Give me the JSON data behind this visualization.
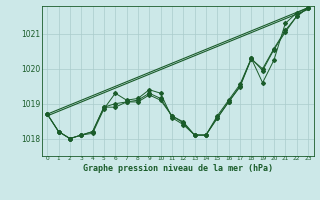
{
  "xlabel": "Graphe pression niveau de la mer (hPa)",
  "background_color": "#cce8e8",
  "grid_color": "#aacccc",
  "line_color": "#1a5c2a",
  "ylim": [
    1017.5,
    1021.8
  ],
  "xlim": [
    -0.5,
    23.5
  ],
  "yticks": [
    1018,
    1019,
    1020,
    1021
  ],
  "xticks": [
    0,
    1,
    2,
    3,
    4,
    5,
    6,
    7,
    8,
    9,
    10,
    11,
    12,
    13,
    14,
    15,
    16,
    17,
    18,
    19,
    20,
    21,
    22,
    23
  ],
  "series": [
    [
      1018.7,
      1018.2,
      1018.0,
      1018.1,
      1018.15,
      1018.85,
      1019.3,
      1019.1,
      1019.15,
      1019.4,
      1019.3,
      1018.6,
      1018.4,
      1018.1,
      1018.1,
      1018.65,
      1019.1,
      1019.55,
      1020.3,
      1019.6,
      1020.25,
      1021.3,
      1021.6,
      1021.75
    ],
    [
      1018.7,
      1018.2,
      1018.0,
      1018.1,
      1018.2,
      1018.9,
      1018.9,
      1019.05,
      1019.1,
      1019.3,
      1019.15,
      1018.65,
      1018.45,
      1018.1,
      1018.1,
      1018.6,
      1019.05,
      1019.5,
      1020.3,
      1019.95,
      1020.55,
      1021.05,
      1021.5,
      1021.75
    ],
    [
      1018.7,
      1018.2,
      1018.0,
      1018.1,
      1018.2,
      1018.9,
      1019.0,
      1019.05,
      1019.05,
      1019.25,
      1019.1,
      1018.65,
      1018.48,
      1018.1,
      1018.1,
      1018.58,
      1019.05,
      1019.48,
      1020.28,
      1020.0,
      1020.58,
      1021.1,
      1021.5,
      1021.75
    ]
  ],
  "trend_lines": [
    {
      "x0": 0,
      "y0": 1018.7,
      "x1": 23,
      "y1": 1021.75
    },
    {
      "x0": 0,
      "y0": 1018.65,
      "x1": 23,
      "y1": 1021.7
    }
  ],
  "figsize": [
    3.2,
    2.0
  ],
  "dpi": 100
}
